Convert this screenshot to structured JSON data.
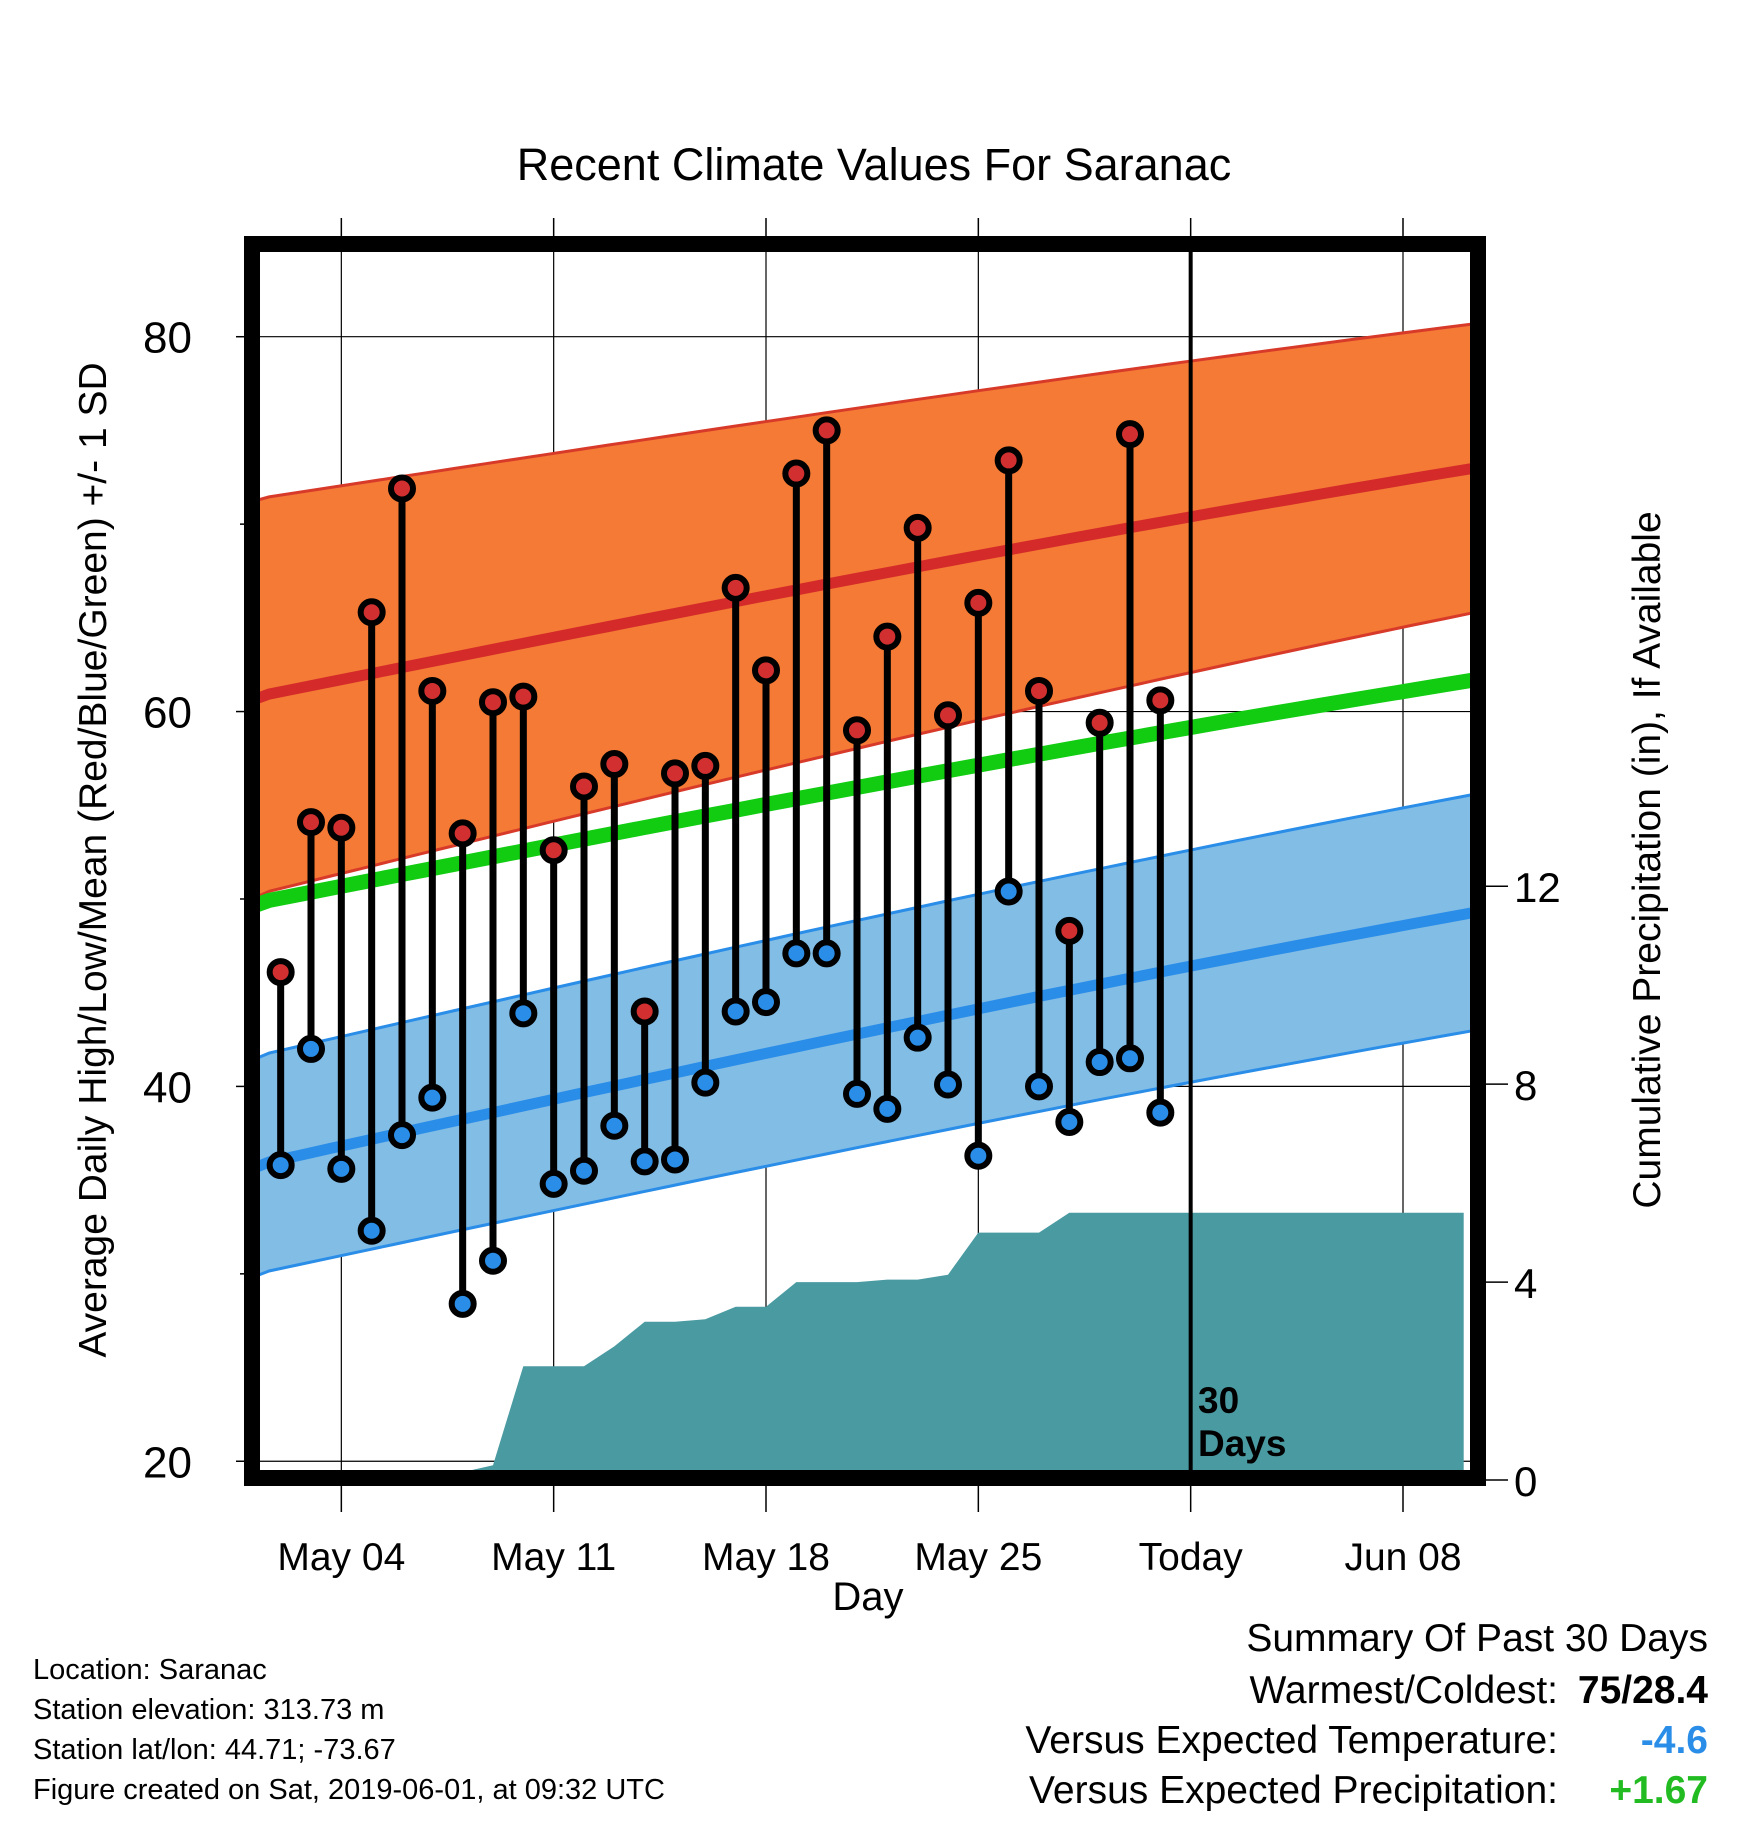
{
  "chart_data": {
    "type": "line",
    "title": "Recent Climate Values For Saranac",
    "xlabel": "Day",
    "ylabel": "Average Daily High/Low/Mean (Red/Blue/Green) +/- 1 SD",
    "ylabel_right": "Cumulative Precipitation (in), If Available",
    "ylim": [
      19,
      85
    ],
    "ylim_right": [
      0,
      25
    ],
    "x_range_days": [
      -1,
      41
    ],
    "x_ticks": [
      {
        "day": 3,
        "label": "May 04"
      },
      {
        "day": 10,
        "label": "May 11"
      },
      {
        "day": 17,
        "label": "May 18"
      },
      {
        "day": 24,
        "label": "May 25"
      },
      {
        "day": 31,
        "label": "Today"
      },
      {
        "day": 38,
        "label": "Jun 08"
      }
    ],
    "y_ticks": [
      20,
      40,
      60,
      80
    ],
    "y_ticks_right": [
      0,
      4,
      8,
      12
    ],
    "today_marker": {
      "day": 31,
      "label_line1": "30",
      "label_line2": "Days"
    },
    "normal_high": {
      "start": 60.6,
      "end": 73.0,
      "sd_start": 10.6,
      "sd_end": 7.7
    },
    "normal_low": {
      "start": 35.6,
      "end": 49.3,
      "sd_start": 5.8,
      "sd_end": 6.3
    },
    "normal_mean": {
      "start": 49.6,
      "end": 61.7
    },
    "series": [
      {
        "name": "High",
        "color": "#d23030",
        "days": [
          1,
          2,
          3,
          4,
          5,
          6,
          7,
          8,
          9,
          10,
          11,
          12,
          13,
          14,
          15,
          16,
          17,
          18,
          19,
          20,
          21,
          22,
          23,
          24,
          25,
          26,
          27,
          28,
          29,
          30
        ],
        "values": [
          46.1,
          54.1,
          53.8,
          65.3,
          71.9,
          61.1,
          53.5,
          60.5,
          60.8,
          52.6,
          56.0,
          57.2,
          44.0,
          56.7,
          57.1,
          66.6,
          62.2,
          72.7,
          75.0,
          59.0,
          64.0,
          69.8,
          59.8,
          65.8,
          73.4,
          61.1,
          48.3,
          59.4,
          74.8,
          60.6
        ]
      },
      {
        "name": "Low",
        "color": "#2a8de8",
        "days": [
          1,
          2,
          3,
          4,
          5,
          6,
          7,
          8,
          9,
          10,
          11,
          12,
          13,
          14,
          15,
          16,
          17,
          18,
          19,
          20,
          21,
          22,
          23,
          24,
          25,
          26,
          27,
          28,
          29,
          30
        ],
        "values": [
          35.8,
          42.0,
          35.6,
          32.3,
          37.4,
          39.4,
          28.4,
          30.7,
          43.9,
          34.8,
          35.5,
          37.9,
          36.0,
          36.1,
          40.2,
          44.0,
          44.5,
          47.1,
          47.1,
          39.6,
          38.8,
          42.6,
          40.1,
          36.3,
          50.4,
          40.0,
          38.1,
          41.3,
          41.5,
          38.6
        ]
      }
    ],
    "precipitation": {
      "color": "#4a9aa2",
      "days": [
        0,
        1,
        2,
        3,
        4,
        5,
        6,
        7,
        8,
        9,
        10,
        11,
        12,
        13,
        14,
        15,
        16,
        17,
        18,
        19,
        20,
        21,
        22,
        23,
        24,
        25,
        26,
        27,
        28,
        29,
        30,
        31,
        40
      ],
      "values": [
        0,
        0,
        0.15,
        0.15,
        0.15,
        0.15,
        0.16,
        0.16,
        0.3,
        2.3,
        2.3,
        2.3,
        2.7,
        3.2,
        3.2,
        3.25,
        3.5,
        3.5,
        4.0,
        4.0,
        4.0,
        4.05,
        4.05,
        4.15,
        5.0,
        5.0,
        5.0,
        5.4,
        5.4,
        5.4,
        5.4,
        5.4,
        5.4
      ]
    }
  },
  "info": {
    "location": "Location: Saranac",
    "elevation": "Station elevation: 313.73 m",
    "latlon": "Station lat/lon: 44.71; -73.67",
    "created": "Figure created on Sat, 2019-06-01, at 09:32 UTC"
  },
  "summary": {
    "title": "Summary Of Past 30 Days",
    "warmest_coldest_label": "Warmest/Coldest:",
    "warmest_coldest_value": "75/28.4",
    "temp_label": "Versus Expected Temperature:",
    "temp_value": "-4.6",
    "temp_color": "#2a8de8",
    "precip_label": "Versus Expected Precipitation:",
    "precip_value": "+1.67",
    "precip_color": "#22bb22"
  }
}
